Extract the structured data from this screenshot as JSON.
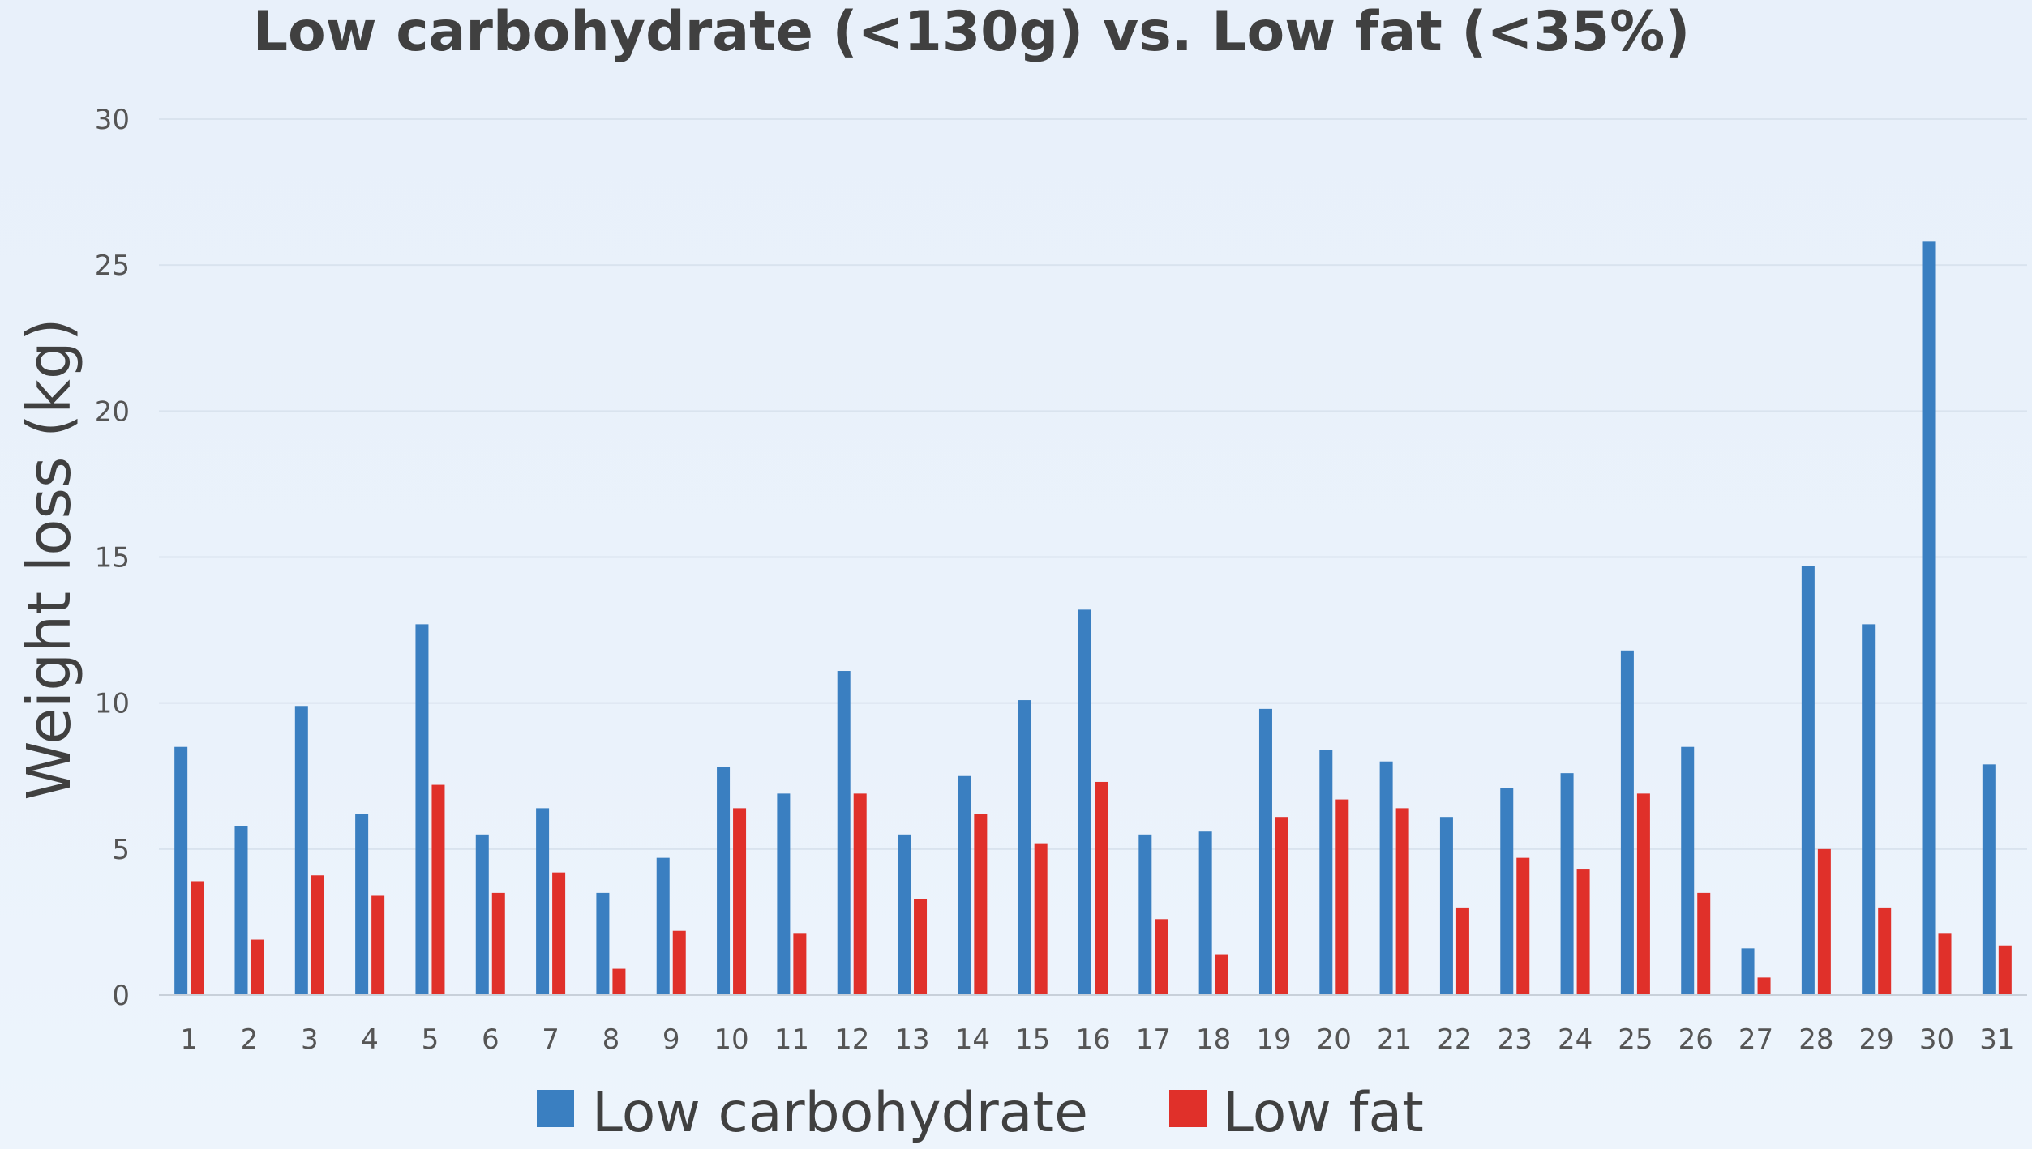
{
  "chart_data": {
    "type": "bar",
    "title": "Low carbohydrate (<130g) vs. Low fat (<35%)",
    "xlabel": "",
    "ylabel": "Weight loss (kg)",
    "ylim": [
      0,
      30
    ],
    "yticks": [
      0,
      5,
      10,
      15,
      20,
      25,
      30
    ],
    "grid": true,
    "legend_position": "bottom",
    "categories": [
      "1",
      "2",
      "3",
      "4",
      "5",
      "6",
      "7",
      "8",
      "9",
      "10",
      "11",
      "12",
      "13",
      "14",
      "15",
      "16",
      "17",
      "18",
      "19",
      "20",
      "21",
      "22",
      "23",
      "24",
      "25",
      "26",
      "27",
      "28",
      "29",
      "30",
      "31"
    ],
    "series": [
      {
        "name": "Low carbohydrate",
        "color": "#3a7fc1",
        "values": [
          8.5,
          5.8,
          9.9,
          6.2,
          12.7,
          5.5,
          6.4,
          3.5,
          4.7,
          7.8,
          6.9,
          11.1,
          5.5,
          7.5,
          10.1,
          13.2,
          5.5,
          5.6,
          9.8,
          8.4,
          8.0,
          6.1,
          7.1,
          7.6,
          11.8,
          8.5,
          1.6,
          14.7,
          12.7,
          25.8,
          7.9
        ]
      },
      {
        "name": "Low fat",
        "color": "#e0302a",
        "values": [
          3.9,
          1.9,
          4.1,
          3.4,
          7.2,
          3.5,
          4.2,
          0.9,
          2.2,
          6.4,
          2.1,
          6.9,
          3.3,
          6.2,
          5.2,
          7.3,
          2.6,
          1.4,
          6.1,
          6.7,
          6.4,
          3.0,
          4.7,
          4.3,
          6.9,
          3.5,
          0.6,
          5.0,
          3.0,
          2.1,
          1.7
        ]
      }
    ]
  }
}
